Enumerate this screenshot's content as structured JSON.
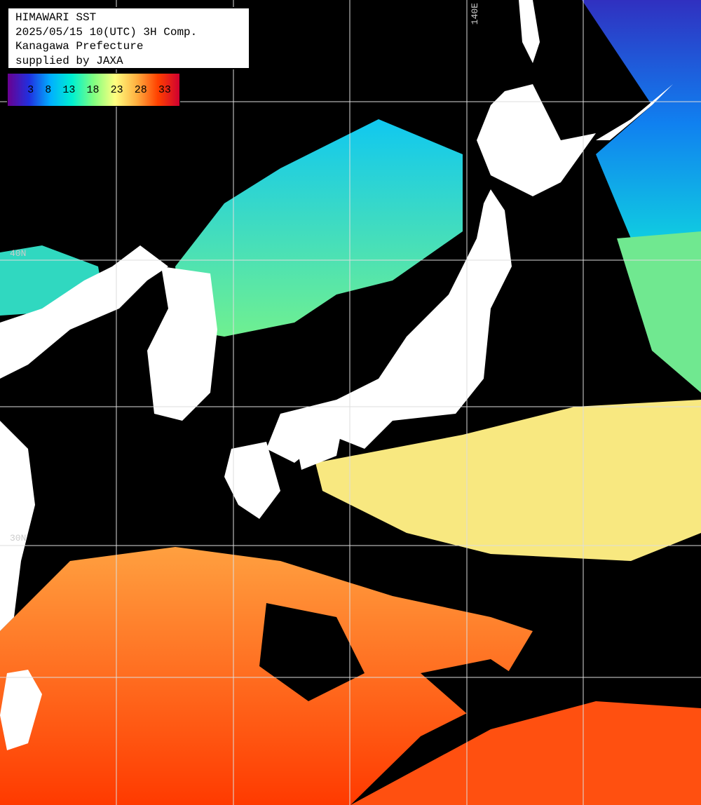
{
  "header": {
    "lines": [
      "HIMAWARI SST",
      "2025/05/15 10(UTC) 3H Comp.",
      "Kanagawa Prefecture",
      "supplied by JAXA"
    ]
  },
  "colorbar": {
    "labels": [
      3,
      8,
      13,
      18,
      23,
      28,
      33
    ]
  },
  "grid_labels": {
    "lon": [
      "140E"
    ],
    "lat": [
      "40N",
      "30N"
    ]
  }
}
